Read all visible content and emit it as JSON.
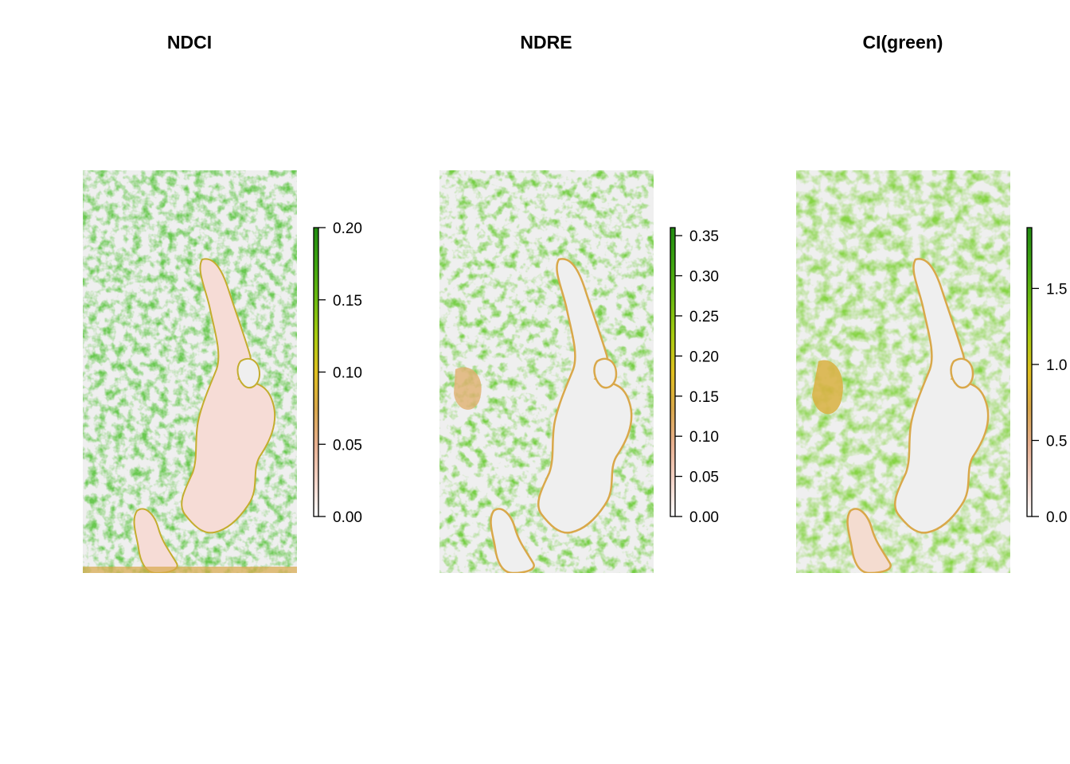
{
  "chart_data": [
    {
      "type": "heatmap",
      "title": "NDCI",
      "legend": {
        "placement": "right",
        "range": [
          0,
          0.2
        ],
        "ticks": [
          0,
          0.05,
          0.1,
          0.15,
          0.2
        ],
        "tick_labels": [
          "0.00",
          "0.05",
          "0.10",
          "0.15",
          "0.20"
        ]
      },
      "lake_value": 0.02
    },
    {
      "type": "heatmap",
      "title": "NDRE",
      "legend": {
        "placement": "right",
        "range": [
          0,
          0.36
        ],
        "ticks": [
          0,
          0.05,
          0.1,
          0.15,
          0.2,
          0.25,
          0.3,
          0.35
        ],
        "tick_labels": [
          "0.00",
          "0.05",
          "0.10",
          "0.15",
          "0.20",
          "0.25",
          "0.30",
          "0.35"
        ]
      },
      "lake_value": 0
    },
    {
      "type": "heatmap",
      "title": "CI(green)",
      "legend": {
        "placement": "right",
        "range": [
          0,
          1.9
        ],
        "ticks": [
          0,
          0.5,
          1,
          1.5
        ],
        "tick_labels": [
          "0.0",
          "0.5",
          "1.0",
          "1.5"
        ]
      },
      "lake_value": 0
    }
  ],
  "colors": {
    "background_na": "#efefef",
    "palette": [
      "#ffffff",
      "#f4d4c8",
      "#e8b090",
      "#d9a84a",
      "#e0c020",
      "#a9cc10",
      "#6cba10",
      "#3ea410",
      "#208a10"
    ]
  }
}
